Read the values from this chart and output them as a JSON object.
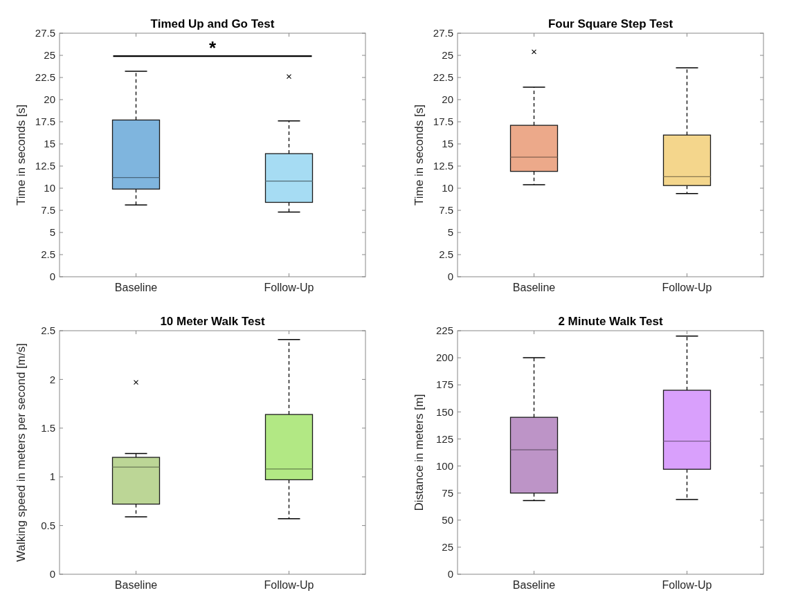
{
  "chart_data": [
    {
      "type": "box",
      "title": "Timed Up and Go Test",
      "ylabel": "Time in seconds [s]",
      "categories": [
        "Baseline",
        "Follow-Up"
      ],
      "colors": [
        "#7fb5de",
        "#a6dcf3"
      ],
      "ylim": [
        0,
        27.5
      ],
      "yticks": [
        0,
        2.5,
        5,
        7.5,
        10,
        12.5,
        15,
        17.5,
        20,
        22.5,
        25,
        27.5
      ],
      "marker": "cross",
      "line_style": "dashed",
      "annotations": [
        "*"
      ],
      "boxes": [
        {
          "low": 8.1,
          "q1": 9.9,
          "median": 11.2,
          "q3": 17.7,
          "high": 23.2
        },
        {
          "low": 7.3,
          "q1": 8.4,
          "median": 10.8,
          "q3": 13.9,
          "high": 17.6,
          "outliers": [
            22.6
          ]
        }
      ]
    },
    {
      "type": "box",
      "title": "Four Square Step Test",
      "ylabel": "Time in seconds [s]",
      "categories": [
        "Baseline",
        "Follow-Up"
      ],
      "colors": [
        "#eca98a",
        "#f4d68c"
      ],
      "ylim": [
        0,
        27.5
      ],
      "yticks": [
        0,
        2.5,
        5,
        7.5,
        10,
        12.5,
        15,
        17.5,
        20,
        22.5,
        25,
        27.5
      ],
      "marker": "cross",
      "line_style": "dashed",
      "boxes": [
        {
          "low": 10.4,
          "q1": 11.9,
          "median": 13.5,
          "q3": 17.1,
          "high": 21.4,
          "outliers": [
            25.4
          ]
        },
        {
          "low": 9.4,
          "q1": 10.3,
          "median": 11.3,
          "q3": 16.0,
          "high": 23.6
        }
      ]
    },
    {
      "type": "box",
      "title": "10 Meter Walk Test",
      "ylabel": "Walking speed in meters per second [m/s]",
      "categories": [
        "Baseline",
        "Follow-Up"
      ],
      "colors": [
        "#bcd696",
        "#b2e884"
      ],
      "ylim": [
        0,
        2.5
      ],
      "yticks": [
        0,
        0.5,
        1,
        1.5,
        2,
        2.5
      ],
      "marker": "cross",
      "line_style": "dashed",
      "boxes": [
        {
          "low": 0.59,
          "q1": 0.72,
          "median": 1.1,
          "q3": 1.2,
          "high": 1.24,
          "outliers": [
            1.97
          ]
        },
        {
          "low": 0.57,
          "q1": 0.97,
          "median": 1.08,
          "q3": 1.64,
          "high": 2.41
        }
      ]
    },
    {
      "type": "box",
      "title": "2 Minute Walk Test",
      "ylabel": "Distance in meters [m]",
      "categories": [
        "Baseline",
        "Follow-Up"
      ],
      "colors": [
        "#bd94c7",
        "#d9a0fc"
      ],
      "ylim": [
        0,
        225
      ],
      "yticks": [
        0,
        25,
        50,
        75,
        100,
        125,
        150,
        175,
        200,
        225
      ],
      "line_style": "dashed",
      "boxes": [
        {
          "low": 68,
          "q1": 75,
          "median": 115,
          "q3": 145,
          "high": 200
        },
        {
          "low": 69,
          "q1": 97,
          "median": 123,
          "q3": 170,
          "high": 220
        }
      ]
    }
  ]
}
